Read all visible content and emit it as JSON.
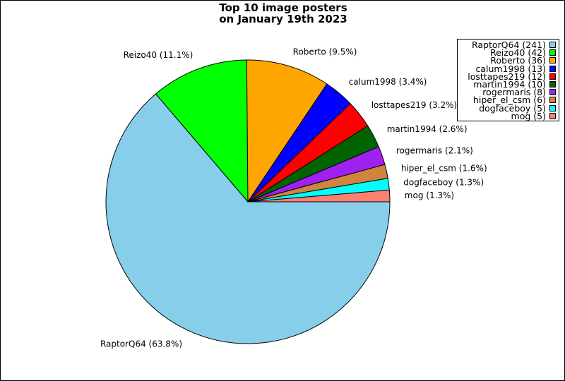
{
  "title_line1": "Top 10 image posters",
  "title_line2": "on January 19th 2023",
  "chart_data": {
    "type": "pie",
    "title": "Top 10 image posters on January 19th 2023",
    "start_angle_deg": 0,
    "direction": "clockwise",
    "legend_position": "top-right",
    "slices": [
      {
        "name": "RaptorQ64",
        "count": 241,
        "legend": "RaptorQ64 (241)",
        "label": "RaptorQ64 (63.8%)",
        "percent": 63.8,
        "color": "#87ceeb"
      },
      {
        "name": "Reizo40",
        "count": 42,
        "legend": "Reizo40 (42)",
        "label": "Reizo40 (11.1%)",
        "percent": 11.1,
        "color": "#00ff00"
      },
      {
        "name": "Roberto",
        "count": 36,
        "legend": "Roberto (36)",
        "label": "Roberto (9.5%)",
        "percent": 9.5,
        "color": "#ffa500"
      },
      {
        "name": "calum1998",
        "count": 13,
        "legend": "calum1998 (13)",
        "label": "calum1998 (3.4%)",
        "percent": 3.4,
        "color": "#0000ff"
      },
      {
        "name": "losttapes219",
        "count": 12,
        "legend": "losttapes219 (12)",
        "label": "losttapes219 (3.2%)",
        "percent": 3.2,
        "color": "#ff0000"
      },
      {
        "name": "martin1994",
        "count": 10,
        "legend": "martin1994 (10)",
        "label": "martin1994 (2.6%)",
        "percent": 2.6,
        "color": "#006400"
      },
      {
        "name": "rogermaris",
        "count": 8,
        "legend": "rogermaris (8)",
        "label": "rogermaris (2.1%)",
        "percent": 2.1,
        "color": "#a020f0"
      },
      {
        "name": "hiper_el_csm",
        "count": 6,
        "legend": "hiper_el_csm (6)",
        "label": "hiper_el_csm (1.6%)",
        "percent": 1.6,
        "color": "#cd853f"
      },
      {
        "name": "dogfaceboy",
        "count": 5,
        "legend": "dogfaceboy (5)",
        "label": "dogfaceboy (1.3%)",
        "percent": 1.3,
        "color": "#00ffff"
      },
      {
        "name": "mog",
        "count": 5,
        "legend": "mog (5)",
        "label": "mog (1.3%)",
        "percent": 1.3,
        "color": "#fa8072"
      }
    ]
  }
}
